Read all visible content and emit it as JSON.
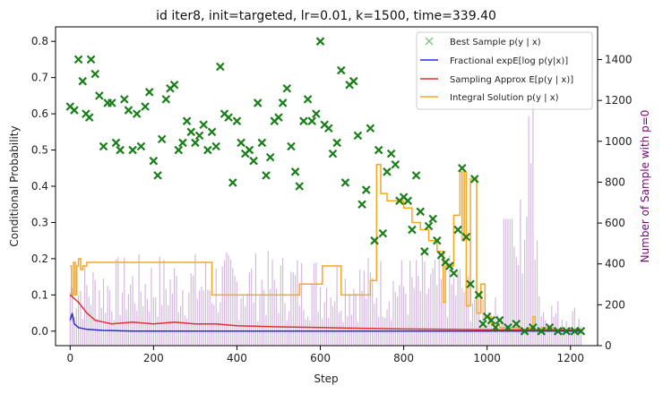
{
  "chart_data": {
    "type": "line",
    "title": "id iter8, init=targeted, lr=0.01, k=1500, time=339.40",
    "xlabel": "Step",
    "ylabel": "Conditional Probability",
    "y2label": "Number of Sample with p=0",
    "xlim": [
      -35,
      1265
    ],
    "ylim": [
      -0.04,
      0.84
    ],
    "y2lim": [
      0,
      1560
    ],
    "xticks": [
      0,
      200,
      400,
      600,
      800,
      1000,
      1200
    ],
    "yticks": [
      0.0,
      0.1,
      0.2,
      0.3,
      0.4,
      0.5,
      0.6,
      0.7,
      0.8
    ],
    "y2ticks": [
      0,
      200,
      400,
      600,
      800,
      1000,
      1200,
      1400
    ],
    "grid": false,
    "legend_position": "top-right",
    "colors": {
      "best_sample": "#1a7f1a",
      "fractional": "#2b2bd6",
      "sampling": "#e03030",
      "integral": "#f5a623",
      "zero_count": "#a066b5",
      "right_axis": "#800080"
    },
    "legend": [
      {
        "key": "best",
        "label": "Best Sample p(y | x)",
        "color": "#7fc27f",
        "marker": "x"
      },
      {
        "key": "fractional",
        "label": "Fractional expE[log p(y|x)]",
        "color": "#2b2bd6"
      },
      {
        "key": "sampling",
        "label": "Sampling Approx E[p(y | x)]",
        "color": "#e03030"
      },
      {
        "key": "integral",
        "label": "Integral Solution p(y | x)",
        "color": "#f5a623"
      }
    ],
    "best_sample": {
      "x": [
        0,
        10,
        20,
        30,
        38,
        46,
        50,
        60,
        70,
        80,
        90,
        100,
        110,
        120,
        130,
        140,
        150,
        160,
        170,
        180,
        190,
        200,
        210,
        220,
        230,
        240,
        250,
        260,
        270,
        280,
        290,
        300,
        310,
        320,
        330,
        340,
        350,
        360,
        370,
        380,
        390,
        400,
        410,
        420,
        430,
        440,
        450,
        460,
        470,
        480,
        490,
        500,
        510,
        520,
        530,
        540,
        550,
        560,
        570,
        580,
        590,
        600,
        610,
        620,
        630,
        640,
        650,
        660,
        670,
        680,
        690,
        700,
        710,
        720,
        730,
        740,
        750,
        760,
        770,
        780,
        790,
        800,
        810,
        820,
        830,
        840,
        850,
        860,
        870,
        880,
        890,
        900,
        910,
        920,
        930,
        940,
        950,
        960,
        970,
        980,
        990,
        1000,
        1010,
        1020,
        1030,
        1050,
        1070,
        1090,
        1110,
        1130,
        1150,
        1170,
        1190,
        1210,
        1225
      ],
      "y": [
        0.62,
        0.61,
        0.75,
        0.69,
        0.6,
        0.59,
        0.75,
        0.71,
        0.65,
        0.51,
        0.63,
        0.63,
        0.52,
        0.5,
        0.64,
        0.61,
        0.5,
        0.6,
        0.51,
        0.62,
        0.66,
        0.47,
        0.43,
        0.53,
        0.64,
        0.67,
        0.68,
        0.5,
        0.52,
        0.58,
        0.55,
        0.52,
        0.54,
        0.57,
        0.5,
        0.55,
        0.51,
        0.73,
        0.6,
        0.59,
        0.41,
        0.58,
        0.52,
        0.49,
        0.5,
        0.47,
        0.63,
        0.52,
        0.43,
        0.48,
        0.58,
        0.59,
        0.63,
        0.67,
        0.51,
        0.44,
        0.4,
        0.58,
        0.64,
        0.58,
        0.6,
        0.8,
        0.57,
        0.56,
        0.49,
        0.52,
        0.72,
        0.41,
        0.68,
        0.69,
        0.54,
        0.35,
        0.39,
        0.56,
        0.25,
        0.5,
        0.27,
        0.44,
        0.49,
        0.46,
        0.36,
        0.37,
        0.36,
        0.28,
        0.43,
        0.33,
        0.22,
        0.29,
        0.31,
        0.25,
        0.21,
        0.19,
        0.18,
        0.16,
        0.28,
        0.45,
        0.26,
        0.13,
        0.42,
        0.1,
        0.02,
        0.04,
        0.03,
        0.01,
        0.03,
        0.01,
        0.02,
        0.0,
        0.01,
        0.0,
        0.01,
        0.0,
        0.0,
        0.0,
        0.0
      ]
    },
    "fractional": {
      "x": [
        0,
        5,
        10,
        20,
        40,
        80,
        150,
        300,
        600,
        900,
        1100,
        1225
      ],
      "y": [
        0.03,
        0.05,
        0.02,
        0.01,
        0.005,
        0.002,
        0.0,
        0.0,
        0.0,
        0.0,
        0.0,
        0.0
      ]
    },
    "sampling": {
      "x": [
        0,
        10,
        20,
        40,
        60,
        80,
        100,
        150,
        200,
        250,
        300,
        350,
        400,
        500,
        600,
        700,
        800,
        900,
        1000,
        1100,
        1225
      ],
      "y": [
        0.1,
        0.09,
        0.08,
        0.05,
        0.03,
        0.025,
        0.02,
        0.025,
        0.02,
        0.025,
        0.02,
        0.02,
        0.015,
        0.012,
        0.01,
        0.008,
        0.006,
        0.005,
        0.004,
        0.004,
        0.003
      ]
    },
    "integral": {
      "x": [
        0,
        3,
        8,
        12,
        16,
        20,
        25,
        30,
        40,
        50,
        60,
        70,
        80,
        100,
        150,
        200,
        250,
        300,
        330,
        340,
        400,
        450,
        500,
        550,
        600,
        605,
        620,
        650,
        700,
        720,
        735,
        745,
        760,
        780,
        800,
        820,
        840,
        860,
        880,
        895,
        900,
        920,
        935,
        940,
        945,
        950,
        960,
        975,
        985,
        995,
        1010,
        1030,
        1060,
        1080,
        1100,
        1110,
        1115,
        1130,
        1160,
        1190,
        1225
      ],
      "y": [
        0.18,
        0.1,
        0.19,
        0.1,
        0.18,
        0.2,
        0.17,
        0.18,
        0.19,
        0.19,
        0.19,
        0.19,
        0.19,
        0.19,
        0.19,
        0.19,
        0.19,
        0.19,
        0.19,
        0.1,
        0.1,
        0.1,
        0.1,
        0.13,
        0.13,
        0.18,
        0.18,
        0.1,
        0.1,
        0.14,
        0.46,
        0.38,
        0.36,
        0.36,
        0.34,
        0.3,
        0.28,
        0.25,
        0.22,
        0.08,
        0.18,
        0.32,
        0.44,
        0.25,
        0.44,
        0.07,
        0.42,
        0.05,
        0.13,
        0.04,
        0.02,
        0.01,
        0.01,
        0.0,
        0.01,
        0.04,
        0.0,
        0.01,
        0.0,
        0.0,
        0.0
      ]
    },
    "zero_count": {
      "x_start": 0,
      "x_end": 1225,
      "step": 5,
      "envelope": [
        {
          "x": 0,
          "y": 420
        },
        {
          "x": 200,
          "y": 460
        },
        {
          "x": 400,
          "y": 470
        },
        {
          "x": 600,
          "y": 460
        },
        {
          "x": 800,
          "y": 450
        },
        {
          "x": 950,
          "y": 450
        },
        {
          "x": 1000,
          "y": 260
        },
        {
          "x": 1050,
          "y": 220
        },
        {
          "x": 1110,
          "y": 1420
        },
        {
          "x": 1130,
          "y": 260
        },
        {
          "x": 1225,
          "y": 200
        }
      ]
    }
  }
}
